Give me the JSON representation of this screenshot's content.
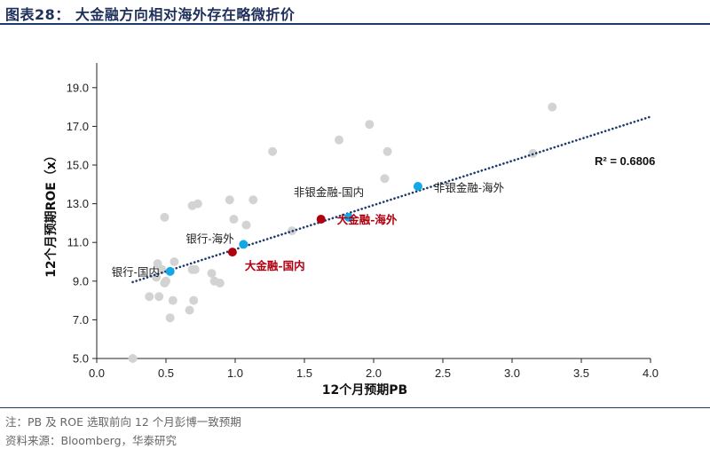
{
  "header": {
    "title": "图表28：  大金融方向相对海外存在略微折价"
  },
  "footer": {
    "note": "注：PB 及 ROE 选取前向 12 个月彭博一致预期",
    "source": "资料来源：Bloomberg，华泰研究"
  },
  "colors": {
    "background_points": "#d3d3d3",
    "highlight_blue": "#11a8e6",
    "highlight_red": "#b0000f",
    "trendline": "#1f3b6b",
    "axis": "#222222"
  },
  "chart_data": {
    "type": "scatter",
    "xlabel": "12个月预期PB",
    "ylabel": "12个月预期ROE（x）",
    "xlim": [
      0.0,
      4.0
    ],
    "ylim": [
      5.0,
      20.0
    ],
    "x_ticks": [
      "0.0",
      "0.5",
      "1.0",
      "1.5",
      "2.0",
      "2.5",
      "3.0",
      "3.5",
      "4.0"
    ],
    "y_ticks": [
      "5.0",
      "7.0",
      "9.0",
      "11.0",
      "13.0",
      "15.0",
      "17.0",
      "19.0"
    ],
    "grid": false,
    "background_points": [
      {
        "x": 0.26,
        "y": 5.0
      },
      {
        "x": 0.38,
        "y": 8.2
      },
      {
        "x": 0.45,
        "y": 8.2
      },
      {
        "x": 0.53,
        "y": 7.1
      },
      {
        "x": 0.55,
        "y": 8.0
      },
      {
        "x": 0.67,
        "y": 7.5
      },
      {
        "x": 0.7,
        "y": 8.0
      },
      {
        "x": 0.43,
        "y": 9.2
      },
      {
        "x": 0.49,
        "y": 8.9
      },
      {
        "x": 0.5,
        "y": 9.0
      },
      {
        "x": 0.44,
        "y": 9.9
      },
      {
        "x": 0.47,
        "y": 9.6
      },
      {
        "x": 0.56,
        "y": 10.0
      },
      {
        "x": 0.69,
        "y": 9.6
      },
      {
        "x": 0.71,
        "y": 9.6
      },
      {
        "x": 0.83,
        "y": 9.4
      },
      {
        "x": 0.85,
        "y": 9.0
      },
      {
        "x": 0.89,
        "y": 8.9
      },
      {
        "x": 0.49,
        "y": 12.3
      },
      {
        "x": 0.69,
        "y": 12.9
      },
      {
        "x": 0.73,
        "y": 13.0
      },
      {
        "x": 0.96,
        "y": 13.2
      },
      {
        "x": 0.99,
        "y": 12.2
      },
      {
        "x": 1.08,
        "y": 11.9
      },
      {
        "x": 1.13,
        "y": 13.2
      },
      {
        "x": 1.27,
        "y": 15.7
      },
      {
        "x": 1.41,
        "y": 11.6
      },
      {
        "x": 1.75,
        "y": 16.3
      },
      {
        "x": 1.97,
        "y": 17.1
      },
      {
        "x": 2.08,
        "y": 14.3
      },
      {
        "x": 2.1,
        "y": 15.7
      },
      {
        "x": 3.15,
        "y": 15.6
      },
      {
        "x": 3.29,
        "y": 18.0
      }
    ],
    "highlight_points": [
      {
        "label": "银行-国内",
        "x": 0.53,
        "y": 9.5,
        "group": "blue"
      },
      {
        "label": "银行-海外",
        "x": 1.06,
        "y": 10.9,
        "group": "blue"
      },
      {
        "label": "大金融-国内",
        "x": 0.98,
        "y": 10.5,
        "group": "red"
      },
      {
        "label": "非银金融-国内",
        "x": 1.82,
        "y": 12.3,
        "group": "blue"
      },
      {
        "label": "大金融-海外",
        "x": 1.62,
        "y": 12.2,
        "group": "red"
      },
      {
        "label": "非银金融-海外",
        "x": 2.32,
        "y": 13.9,
        "group": "blue"
      }
    ],
    "trendline": {
      "style": "dotted",
      "x_start": 0.26,
      "y_start": 8.95,
      "x_end": 4.0,
      "y_end": 17.5
    },
    "r_squared_label": "R² = 0.6806"
  }
}
